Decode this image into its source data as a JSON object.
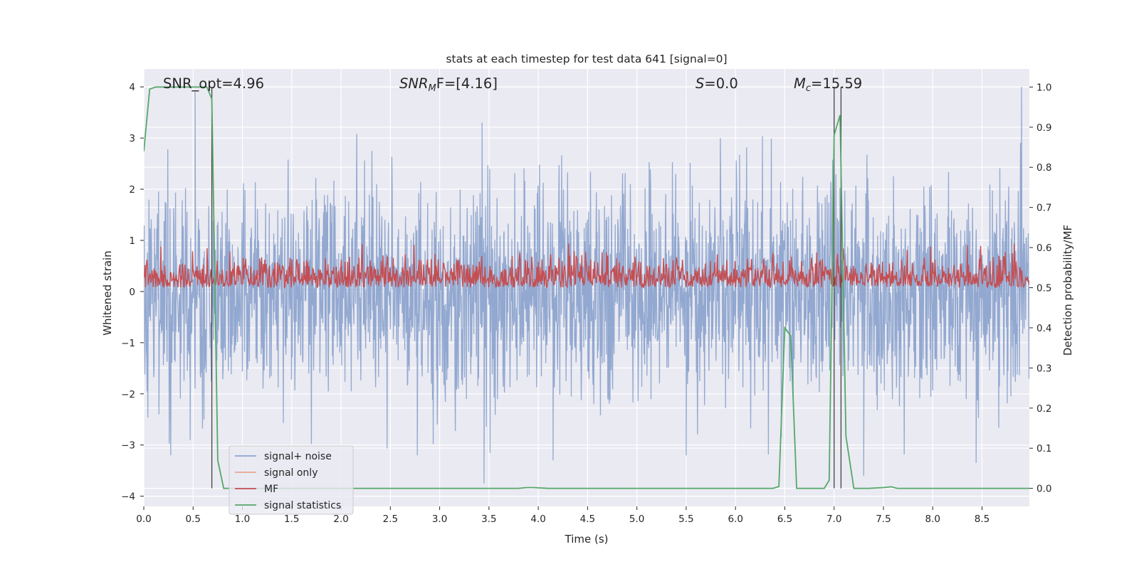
{
  "chart_data": {
    "type": "line",
    "title": "stats at each timestep for test data 641 [signal=0]",
    "xlabel": "Time (s)",
    "ylabel": "Whitened strain",
    "ylabel_right": "Detection probability/MF",
    "xlim": [
      0.0,
      8.98
    ],
    "ylim": [
      -4.2,
      4.35
    ],
    "ylim_right": [
      -0.045,
      1.045
    ],
    "x_ticks": [
      "0.0",
      "0.5",
      "1.0",
      "1.5",
      "2.0",
      "2.5",
      "3.0",
      "3.5",
      "4.0",
      "4.5",
      "5.0",
      "5.5",
      "6.0",
      "6.5",
      "7.0",
      "7.5",
      "8.0",
      "8.5"
    ],
    "y_ticks": [
      "4",
      "3",
      "2",
      "1",
      "0",
      "−1",
      "−2",
      "−3",
      "−4"
    ],
    "y_tick_values": [
      4,
      3,
      2,
      1,
      0,
      -1,
      -2,
      -3,
      -4
    ],
    "y_ticks_right": [
      "1.0",
      "0.9",
      "0.8",
      "0.7",
      "0.6",
      "0.5",
      "0.4",
      "0.3",
      "0.2",
      "0.1",
      "0.0"
    ],
    "y_tick_values_right": [
      1.0,
      0.9,
      0.8,
      0.7,
      0.6,
      0.5,
      0.4,
      0.3,
      0.2,
      0.1,
      0.0
    ],
    "grid": true,
    "legend_position": "lower-left",
    "annotations": {
      "snr_opt": "SNR_opt=4.96",
      "snr_mf_sym": "SNR",
      "snr_mf_sub": "M",
      "snr_mf_rest": "F=[4.16]",
      "s_sym": "S",
      "s_rest": "=0.0",
      "mc_sym": "M",
      "mc_sub": "c",
      "mc_rest": "=15.59"
    },
    "vertical_markers_s": [
      0.69,
      7.0,
      7.07
    ],
    "series": [
      {
        "name": "signal+ noise",
        "color": "#8da4cd",
        "axis": "left",
        "t_range": [
          0.0,
          8.98
        ],
        "samples": 2400,
        "envelope": {
          "typical_abs": 1.5,
          "max": 4.0,
          "min": -3.8
        },
        "spikes": [
          [
            0.52,
            3.9
          ],
          [
            8.9,
            4.0
          ],
          [
            3.43,
            3.3
          ],
          [
            3.45,
            -3.75
          ],
          [
            4.15,
            -3.3
          ],
          [
            5.5,
            -3.2
          ],
          [
            8.44,
            -3.35
          ],
          [
            7.3,
            -3.6
          ],
          [
            0.47,
            -2.9
          ]
        ]
      },
      {
        "name": "signal only",
        "color": "#e5a891",
        "axis": "left",
        "values_note": "not visible (signal=0)"
      },
      {
        "name": "MF",
        "color": "#c44e52",
        "axis": "right",
        "t_range": [
          0.0,
          8.98
        ],
        "samples": 1400,
        "base": 0.5,
        "range": [
          0.5,
          0.61
        ]
      },
      {
        "name": "signal statistics",
        "color": "#55a868",
        "axis": "right",
        "x": [
          0.0,
          0.06,
          0.12,
          0.2,
          0.3,
          0.4,
          0.5,
          0.6,
          0.64,
          0.69,
          0.75,
          0.81,
          0.88,
          1.0,
          2.0,
          3.0,
          3.8,
          3.88,
          3.95,
          4.1,
          5.0,
          6.0,
          6.38,
          6.44,
          6.5,
          6.56,
          6.62,
          6.7,
          6.9,
          6.95,
          7.0,
          7.06,
          7.12,
          7.2,
          7.35,
          7.5,
          7.58,
          7.64,
          7.8,
          8.5,
          8.98
        ],
        "y": [
          0.84,
          0.995,
          1.0,
          1.0,
          1.0,
          1.0,
          1.0,
          1.0,
          1.0,
          0.97,
          0.07,
          0.0,
          0.0,
          0.0,
          0.0,
          0.0,
          0.0,
          0.002,
          0.002,
          0.0,
          0.0,
          0.0,
          0.0,
          0.0045,
          0.4,
          0.38,
          0.0,
          0.0,
          0.0,
          0.02,
          0.88,
          0.93,
          0.13,
          0.0,
          0.0,
          0.002,
          0.004,
          0.0,
          0.0,
          0.0,
          0.0
        ]
      }
    ]
  }
}
